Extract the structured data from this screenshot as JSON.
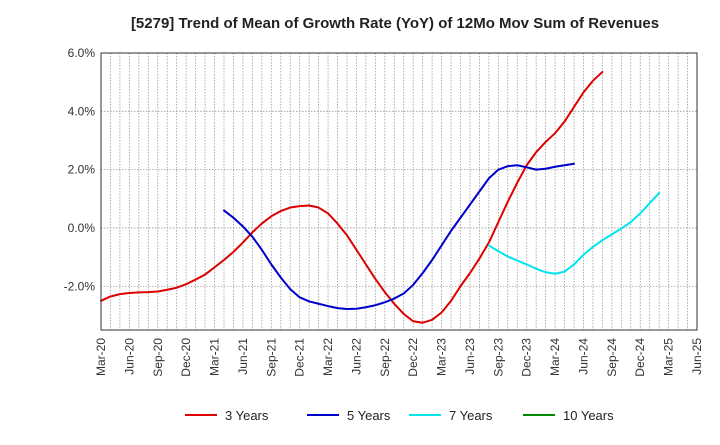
{
  "chart_data": {
    "type": "line",
    "title": "[5279]  Trend of Mean of Growth Rate (YoY) of 12Mo Mov Sum of Revenues",
    "xlabel": "",
    "ylabel": "",
    "ylim": [
      -3.5,
      6.0
    ],
    "yticks": [
      6.0,
      4.0,
      2.0,
      0.0,
      -2.0
    ],
    "ytick_labels": [
      "6.0%",
      "4.0%",
      "2.0%",
      "0.0%",
      "-2.0%"
    ],
    "x_categories": [
      "Mar-20",
      "Jun-20",
      "Sep-20",
      "Dec-20",
      "Mar-21",
      "Jun-21",
      "Sep-21",
      "Dec-21",
      "Mar-22",
      "Jun-22",
      "Sep-22",
      "Dec-22",
      "Mar-23",
      "Jun-23",
      "Sep-23",
      "Dec-23",
      "Mar-24",
      "Jun-24",
      "Sep-24",
      "Dec-24",
      "Mar-25",
      "Jun-25"
    ],
    "grid": true,
    "legend_position": "bottom",
    "series": [
      {
        "name": "3 Years",
        "color": "#dd0000",
        "start_index": 0,
        "values": [
          -2.5,
          -2.35,
          -2.27,
          -2.23,
          -2.21,
          -2.2,
          -2.18,
          -2.12,
          -2.05,
          -1.93,
          -1.77,
          -1.6,
          -1.35,
          -1.1,
          -0.82,
          -0.5,
          -0.15,
          0.15,
          0.4,
          0.58,
          0.7,
          0.75,
          0.77,
          0.7,
          0.5,
          0.15,
          -0.25,
          -0.75,
          -1.25,
          -1.75,
          -2.2,
          -2.6,
          -2.95,
          -3.2,
          -3.25,
          -3.15,
          -2.9,
          -2.5,
          -2.0,
          -1.55,
          -1.05,
          -0.5,
          0.2,
          0.9,
          1.55,
          2.15,
          2.6,
          2.95,
          3.25,
          3.65,
          4.15,
          4.65,
          5.05,
          5.35
        ]
      },
      {
        "name": "5 Years",
        "color": "#0000cc",
        "start_index": 13,
        "values": [
          0.6,
          0.35,
          0.05,
          -0.3,
          -0.75,
          -1.25,
          -1.7,
          -2.1,
          -2.38,
          -2.52,
          -2.6,
          -2.68,
          -2.75,
          -2.78,
          -2.77,
          -2.72,
          -2.65,
          -2.55,
          -2.42,
          -2.25,
          -1.95,
          -1.55,
          -1.1,
          -0.6,
          -0.1,
          0.35,
          0.8,
          1.25,
          1.7,
          2.0,
          2.12,
          2.15,
          2.08,
          2.0,
          2.03,
          2.1,
          2.15,
          2.2
        ]
      },
      {
        "name": "7 Years",
        "color": "#00e5ee",
        "start_index": 41,
        "values": [
          -0.6,
          -0.8,
          -0.98,
          -1.12,
          -1.25,
          -1.4,
          -1.52,
          -1.57,
          -1.5,
          -1.25,
          -0.92,
          -0.65,
          -0.42,
          -0.22,
          -0.02,
          0.2,
          0.5,
          0.85,
          1.2
        ]
      },
      {
        "name": "10 Years",
        "color": "#008800",
        "start_index": 0,
        "values": []
      }
    ]
  }
}
